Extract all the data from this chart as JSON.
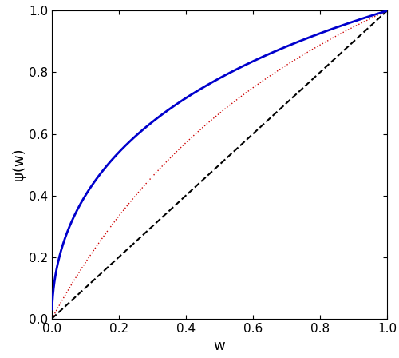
{
  "xlim": [
    0,
    1
  ],
  "ylim": [
    0,
    1
  ],
  "xlabel": "w",
  "ylabel": "ψ(w)",
  "xticks": [
    0,
    0.2,
    0.4,
    0.6,
    0.8,
    1
  ],
  "yticks": [
    0,
    0.2,
    0.4,
    0.6,
    0.8,
    1.0
  ],
  "red_dotted_color": "#cc0000",
  "black_dashed_color": "#000000",
  "blue_solid_color": "#0000cc",
  "background_color": "#ffffff",
  "linewidth_blue": 2.0,
  "linewidth_black": 1.5,
  "linewidth_red": 1.0,
  "xlabel_fontsize": 13,
  "ylabel_fontsize": 13,
  "tick_labelsize": 11
}
